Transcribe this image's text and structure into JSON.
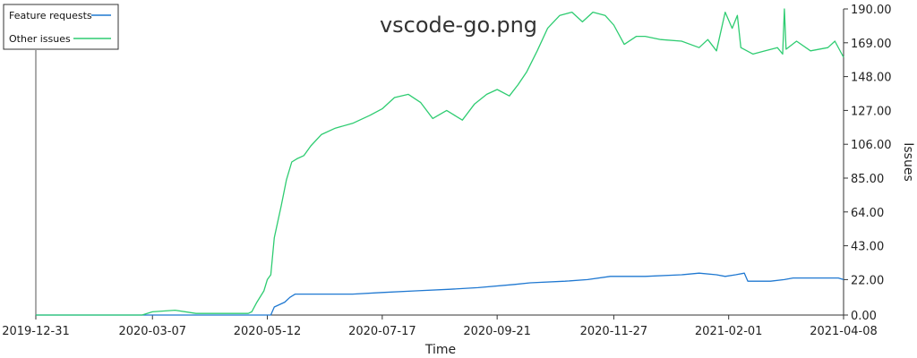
{
  "chart_data": {
    "type": "line",
    "title": "vscode-go.png",
    "xlabel": "Time",
    "ylabel": "Issues",
    "x_ticks": [
      "2019-12-31",
      "2020-03-07",
      "2020-05-12",
      "2020-07-17",
      "2020-09-21",
      "2020-11-27",
      "2021-02-01",
      "2021-04-08"
    ],
    "y_ticks": [
      "0.00",
      "22.00",
      "43.00",
      "64.00",
      "85.00",
      "106.00",
      "127.00",
      "148.00",
      "169.00",
      "190.00"
    ],
    "xlim": [
      "2019-12-31",
      "2021-04-08"
    ],
    "ylim": [
      0,
      190
    ],
    "y_axis_side": "right",
    "legend_position": "top-left",
    "grid": false,
    "series": [
      {
        "name": "Feature requests",
        "color": "#1f78d1",
        "x": [
          "2019-12-31",
          "2020-05-14",
          "2020-05-16",
          "2020-05-22",
          "2020-05-25",
          "2020-05-28",
          "2020-06-30",
          "2020-07-17",
          "2020-08-05",
          "2020-08-25",
          "2020-09-10",
          "2020-10-01",
          "2020-10-10",
          "2020-10-30",
          "2020-11-12",
          "2020-11-25",
          "2020-12-15",
          "2021-01-05",
          "2021-01-15",
          "2021-01-25",
          "2021-01-30",
          "2021-02-05",
          "2021-02-10",
          "2021-02-12",
          "2021-02-25",
          "2021-03-05",
          "2021-03-10",
          "2021-04-05",
          "2021-04-08"
        ],
        "y": [
          0,
          0,
          5,
          8,
          11,
          13,
          13,
          14,
          15,
          16,
          17,
          19,
          20,
          21,
          22,
          24,
          24,
          25,
          26,
          25,
          24,
          25,
          26,
          21,
          21,
          22,
          23,
          23,
          22
        ]
      },
      {
        "name": "Other issues",
        "color": "#2ecc71",
        "x": [
          "2019-12-31",
          "2020-03-01",
          "2020-03-07",
          "2020-03-20",
          "2020-04-01",
          "2020-04-15",
          "2020-05-01",
          "2020-05-03",
          "2020-05-06",
          "2020-05-10",
          "2020-05-12",
          "2020-05-14",
          "2020-05-16",
          "2020-05-20",
          "2020-05-23",
          "2020-05-26",
          "2020-05-29",
          "2020-06-02",
          "2020-06-06",
          "2020-06-12",
          "2020-06-20",
          "2020-06-30",
          "2020-07-10",
          "2020-07-17",
          "2020-07-24",
          "2020-08-01",
          "2020-08-08",
          "2020-08-15",
          "2020-08-23",
          "2020-09-01",
          "2020-09-08",
          "2020-09-15",
          "2020-09-21",
          "2020-09-28",
          "2020-10-03",
          "2020-10-08",
          "2020-10-14",
          "2020-10-20",
          "2020-10-27",
          "2020-11-03",
          "2020-11-09",
          "2020-11-15",
          "2020-11-22",
          "2020-11-27",
          "2020-12-03",
          "2020-12-10",
          "2020-12-15",
          "2020-12-24",
          "2021-01-05",
          "2021-01-15",
          "2021-01-20",
          "2021-01-25",
          "2021-01-30",
          "2021-02-03",
          "2021-02-06",
          "2021-02-08",
          "2021-02-15",
          "2021-02-22",
          "2021-03-01",
          "2021-03-04",
          "2021-03-05",
          "2021-03-06",
          "2021-03-12",
          "2021-03-20",
          "2021-03-30",
          "2021-04-03",
          "2021-04-08"
        ],
        "y": [
          0,
          0,
          2,
          3,
          1,
          1,
          1,
          2,
          8,
          15,
          22,
          25,
          48,
          68,
          84,
          95,
          97,
          99,
          105,
          112,
          116,
          119,
          124,
          128,
          135,
          137,
          132,
          122,
          127,
          121,
          131,
          137,
          140,
          136,
          143,
          151,
          164,
          178,
          186,
          188,
          182,
          188,
          186,
          180,
          168,
          173,
          173,
          171,
          170,
          166,
          171,
          164,
          188,
          178,
          186,
          166,
          162,
          164,
          166,
          162,
          190,
          165,
          170,
          164,
          166,
          170,
          160
        ]
      }
    ]
  }
}
